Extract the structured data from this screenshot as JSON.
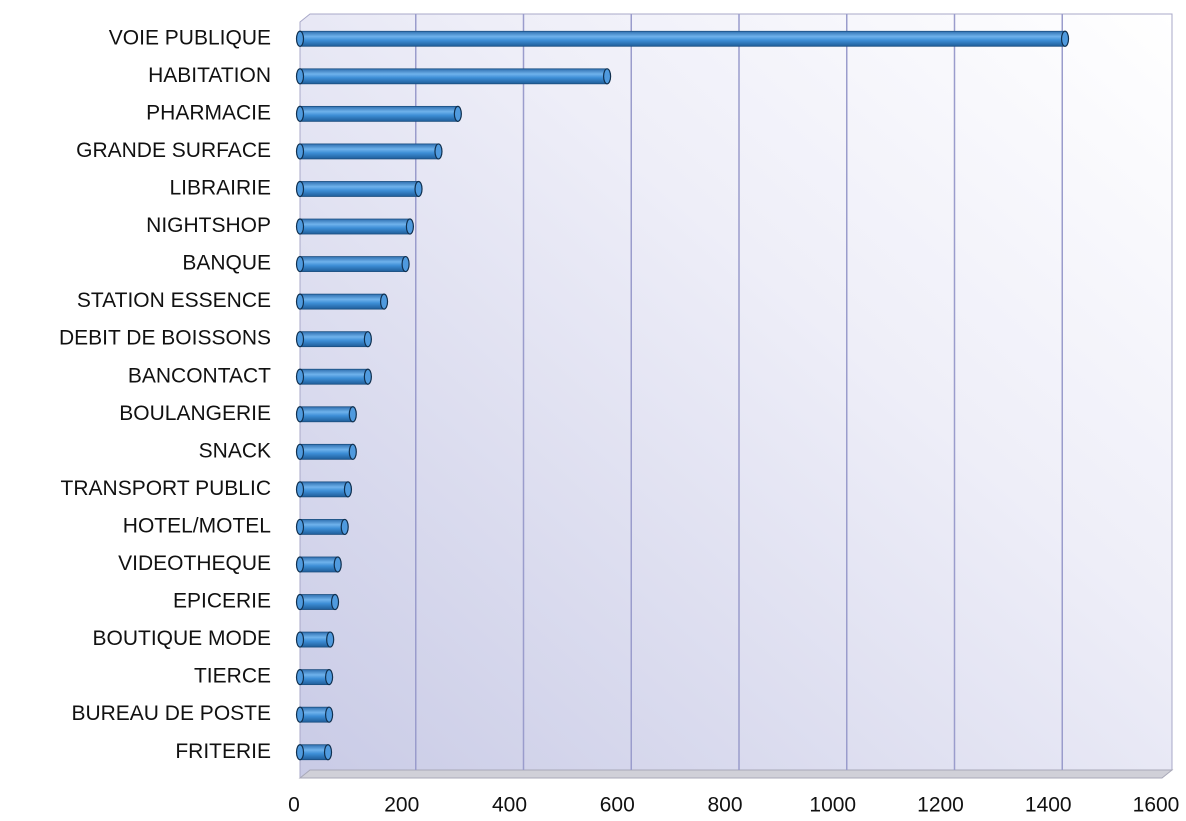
{
  "chart_data": {
    "type": "bar",
    "orientation": "horizontal",
    "categories": [
      "VOIE PUBLIQUE",
      "HABITATION",
      "PHARMACIE",
      "GRANDE SURFACE",
      "LIBRAIRIE",
      "NIGHTSHOP",
      "BANQUE",
      "STATION ESSENCE",
      "DEBIT DE BOISSONS",
      "BANCONTACT",
      "BOULANGERIE",
      "SNACK",
      "TRANSPORT PUBLIC",
      "HOTEL/MOTEL",
      "VIDEOTHEQUE",
      "EPICERIE",
      "BOUTIQUE MODE",
      "TIERCE",
      "BUREAU DE POSTE",
      "FRITERIE"
    ],
    "values": [
      1420,
      570,
      293,
      257,
      220,
      204,
      196,
      156,
      126,
      126,
      98,
      98,
      89,
      83,
      70,
      65,
      56,
      54,
      54,
      52
    ],
    "color": "#3d8ed6",
    "xlim": [
      0,
      1600
    ],
    "xticks": [
      0,
      200,
      400,
      600,
      800,
      1000,
      1200,
      1400,
      1600
    ],
    "grid": true
  }
}
